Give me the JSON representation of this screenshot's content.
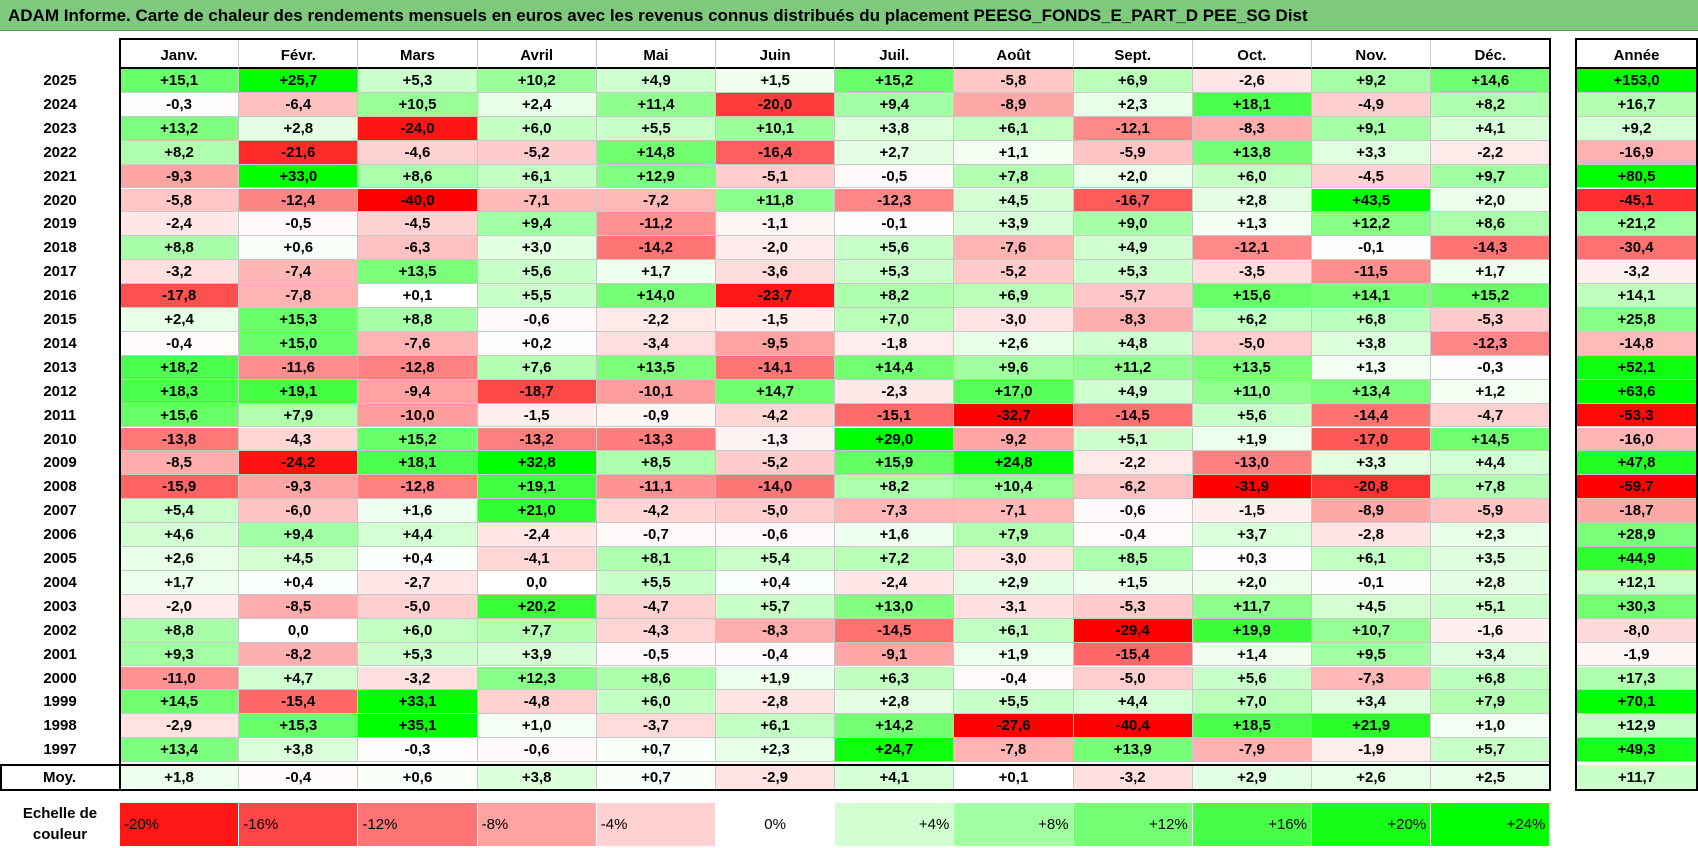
{
  "title": "ADAM Informe. Carte de chaleur des rendements mensuels en euros avec les revenus connus distribués du placement PEESG_FONDS_E_PART_D PEE_SG Dist",
  "chart_data": {
    "type": "heatmap",
    "title": "ADAM Informe. Carte de chaleur des rendements mensuels en euros avec les revenus connus distribués du placement PEESG_FONDS_E_PART_D PEE_SG Dist",
    "months": [
      "Janv.",
      "Févr.",
      "Mars",
      "Avril",
      "Mai",
      "Juin",
      "Juil.",
      "Août",
      "Sept.",
      "Oct.",
      "Nov.",
      "Déc."
    ],
    "year_column_label": "Année",
    "avg_label": "Moy.",
    "rows": [
      {
        "year": "2025",
        "values": [
          "+15,1",
          "+25,7",
          "+5,3",
          "+10,2",
          "+4,9",
          "+1,5",
          "+15,2",
          "-5,8",
          "+6,9",
          "-2,6",
          "+9,2",
          "+14,6"
        ],
        "annual": "+153,0"
      },
      {
        "year": "2024",
        "values": [
          "-0,3",
          "-6,4",
          "+10,5",
          "+2,4",
          "+11,4",
          "-20,0",
          "+9,4",
          "-8,9",
          "+2,3",
          "+18,1",
          "-4,9",
          "+8,2"
        ],
        "annual": "+16,7"
      },
      {
        "year": "2023",
        "values": [
          "+13,2",
          "+2,8",
          "-24,0",
          "+6,0",
          "+5,5",
          "+10,1",
          "+3,8",
          "+6,1",
          "-12,1",
          "-8,3",
          "+9,1",
          "+4,1"
        ],
        "annual": "+9,2"
      },
      {
        "year": "2022",
        "values": [
          "+8,2",
          "-21,6",
          "-4,6",
          "-5,2",
          "+14,8",
          "-16,4",
          "+2,7",
          "+1,1",
          "-5,9",
          "+13,8",
          "+3,3",
          "-2,2"
        ],
        "annual": "-16,9"
      },
      {
        "year": "2021",
        "values": [
          "-9,3",
          "+33,0",
          "+8,6",
          "+6,1",
          "+12,9",
          "-5,1",
          "-0,5",
          "+7,8",
          "+2,0",
          "+6,0",
          "-4,5",
          "+9,7"
        ],
        "annual": "+80,5"
      },
      {
        "year": "2020",
        "values": [
          "-5,8",
          "-12,4",
          "-40,0",
          "-7,1",
          "-7,2",
          "+11,8",
          "-12,3",
          "+4,5",
          "-16,7",
          "+2,8",
          "+43,5",
          "+2,0"
        ],
        "annual": "-45,1"
      },
      {
        "year": "2019",
        "values": [
          "-2,4",
          "-0,5",
          "-4,5",
          "+9,4",
          "-11,2",
          "-1,1",
          "-0,1",
          "+3,9",
          "+9,0",
          "+1,3",
          "+12,2",
          "+8,6"
        ],
        "annual": "+21,2"
      },
      {
        "year": "2018",
        "values": [
          "+8,8",
          "+0,6",
          "-6,3",
          "+3,0",
          "-14,2",
          "-2,0",
          "+5,6",
          "-7,6",
          "+4,9",
          "-12,1",
          "-0,1",
          "-14,3"
        ],
        "annual": "-30,4"
      },
      {
        "year": "2017",
        "values": [
          "-3,2",
          "-7,4",
          "+13,5",
          "+5,6",
          "+1,7",
          "-3,6",
          "+5,3",
          "-5,2",
          "+5,3",
          "-3,5",
          "-11,5",
          "+1,7"
        ],
        "annual": "-3,2"
      },
      {
        "year": "2016",
        "values": [
          "-17,8",
          "-7,8",
          "+0,1",
          "+5,5",
          "+14,0",
          "-23,7",
          "+8,2",
          "+6,9",
          "-5,7",
          "+15,6",
          "+14,1",
          "+15,2"
        ],
        "annual": "+14,1"
      },
      {
        "year": "2015",
        "values": [
          "+2,4",
          "+15,3",
          "+8,8",
          "-0,6",
          "-2,2",
          "-1,5",
          "+7,0",
          "-3,0",
          "-8,3",
          "+6,2",
          "+6,8",
          "-5,3"
        ],
        "annual": "+25,8"
      },
      {
        "year": "2014",
        "values": [
          "-0,4",
          "+15,0",
          "-7,6",
          "+0,2",
          "-3,4",
          "-9,5",
          "-1,8",
          "+2,6",
          "+4,8",
          "-5,0",
          "+3,8",
          "-12,3"
        ],
        "annual": "-14,8"
      },
      {
        "year": "2013",
        "values": [
          "+18,2",
          "-11,6",
          "-12,8",
          "+7,6",
          "+13,5",
          "-14,1",
          "+14,4",
          "+9,6",
          "+11,2",
          "+13,5",
          "+1,3",
          "-0,3"
        ],
        "annual": "+52,1"
      },
      {
        "year": "2012",
        "values": [
          "+18,3",
          "+19,1",
          "-9,4",
          "-18,7",
          "-10,1",
          "+14,7",
          "-2,3",
          "+17,0",
          "+4,9",
          "+11,0",
          "+13,4",
          "+1,2"
        ],
        "annual": "+63,6"
      },
      {
        "year": "2011",
        "values": [
          "+15,6",
          "+7,9",
          "-10,0",
          "-1,5",
          "-0,9",
          "-4,2",
          "-15,1",
          "-32,7",
          "-14,5",
          "+5,6",
          "-14,4",
          "-4,7"
        ],
        "annual": "-53,3"
      },
      {
        "year": "2010",
        "values": [
          "-13,8",
          "-4,3",
          "+15,2",
          "-13,2",
          "-13,3",
          "-1,3",
          "+29,0",
          "-9,2",
          "+5,1",
          "+1,9",
          "-17,0",
          "+14,5"
        ],
        "annual": "-16,0"
      },
      {
        "year": "2009",
        "values": [
          "-8,5",
          "-24,2",
          "+18,1",
          "+32,8",
          "+8,5",
          "-5,2",
          "+15,9",
          "+24,8",
          "-2,2",
          "-13,0",
          "+3,3",
          "+4,4"
        ],
        "annual": "+47,8"
      },
      {
        "year": "2008",
        "values": [
          "-15,9",
          "-9,3",
          "-12,8",
          "+19,1",
          "-11,1",
          "-14,0",
          "+8,2",
          "+10,4",
          "-6,2",
          "-31,9",
          "-20,8",
          "+7,8"
        ],
        "annual": "-59,7"
      },
      {
        "year": "2007",
        "values": [
          "+5,4",
          "-6,0",
          "+1,6",
          "+21,0",
          "-4,2",
          "-5,0",
          "-7,3",
          "-7,1",
          "-0,6",
          "-1,5",
          "-8,9",
          "-5,9"
        ],
        "annual": "-18,7"
      },
      {
        "year": "2006",
        "values": [
          "+4,6",
          "+9,4",
          "+4,4",
          "-2,4",
          "-0,7",
          "-0,6",
          "+1,6",
          "+7,9",
          "-0,4",
          "+3,7",
          "-2,8",
          "+2,3"
        ],
        "annual": "+28,9"
      },
      {
        "year": "2005",
        "values": [
          "+2,6",
          "+4,5",
          "+0,4",
          "-4,1",
          "+8,1",
          "+5,4",
          "+7,2",
          "-3,0",
          "+8,5",
          "+0,3",
          "+6,1",
          "+3,5"
        ],
        "annual": "+44,9"
      },
      {
        "year": "2004",
        "values": [
          "+1,7",
          "+0,4",
          "-2,7",
          "0,0",
          "+5,5",
          "+0,4",
          "-2,4",
          "+2,9",
          "+1,5",
          "+2,0",
          "-0,1",
          "+2,8"
        ],
        "annual": "+12,1"
      },
      {
        "year": "2003",
        "values": [
          "-2,0",
          "-8,5",
          "-5,0",
          "+20,2",
          "-4,7",
          "+5,7",
          "+13,0",
          "-3,1",
          "-5,3",
          "+11,7",
          "+4,5",
          "+5,1"
        ],
        "annual": "+30,3"
      },
      {
        "year": "2002",
        "values": [
          "+8,8",
          "0,0",
          "+6,0",
          "+7,7",
          "-4,3",
          "-8,3",
          "-14,5",
          "+6,1",
          "-29,4",
          "+19,9",
          "+10,7",
          "-1,6"
        ],
        "annual": "-8,0"
      },
      {
        "year": "2001",
        "values": [
          "+9,3",
          "-8,2",
          "+5,3",
          "+3,9",
          "-0,5",
          "-0,4",
          "-9,1",
          "+1,9",
          "-15,4",
          "+1,4",
          "+9,5",
          "+3,4"
        ],
        "annual": "-1,9"
      },
      {
        "year": "2000",
        "values": [
          "-11,0",
          "+4,7",
          "-3,2",
          "+12,3",
          "+8,6",
          "+1,9",
          "+6,3",
          "-0,4",
          "-5,0",
          "+5,6",
          "-7,3",
          "+6,8"
        ],
        "annual": "+17,3"
      },
      {
        "year": "1999",
        "values": [
          "+14,5",
          "-15,4",
          "+33,1",
          "-4,8",
          "+6,0",
          "-2,8",
          "+2,8",
          "+5,5",
          "+4,4",
          "+7,0",
          "+3,4",
          "+7,9"
        ],
        "annual": "+70,1"
      },
      {
        "year": "1998",
        "values": [
          "-2,9",
          "+15,3",
          "+35,1",
          "+1,0",
          "-3,7",
          "+6,1",
          "+14,2",
          "-27,6",
          "-40,4",
          "+18,5",
          "+21,9",
          "+1,0"
        ],
        "annual": "+12,9"
      },
      {
        "year": "1997",
        "values": [
          "+13,4",
          "+3,8",
          "-0,3",
          "-0,6",
          "+0,7",
          "+2,3",
          "+24,7",
          "-7,8",
          "+13,9",
          "-7,9",
          "-1,9",
          "+5,7"
        ],
        "annual": "+49,3"
      }
    ],
    "averages": {
      "values": [
        "+1,8",
        "-0,4",
        "+0,6",
        "+3,8",
        "+0,7",
        "-2,9",
        "+4,1",
        "+0,1",
        "-3,2",
        "+2,9",
        "+2,6",
        "+2,5"
      ],
      "annual": "+11,7"
    },
    "color_scale": {
      "label_line1": "Echelle de",
      "label_line2": "couleur",
      "stops": [
        "-20%",
        "-16%",
        "-12%",
        "-8%",
        "-4%",
        "0%",
        "+4%",
        "+8%",
        "+12%",
        "+16%",
        "+20%",
        "+24%"
      ]
    },
    "colors": {
      "negative": "#ff0000",
      "neutral": "#ffffff",
      "positive": "#00ff00"
    }
  }
}
